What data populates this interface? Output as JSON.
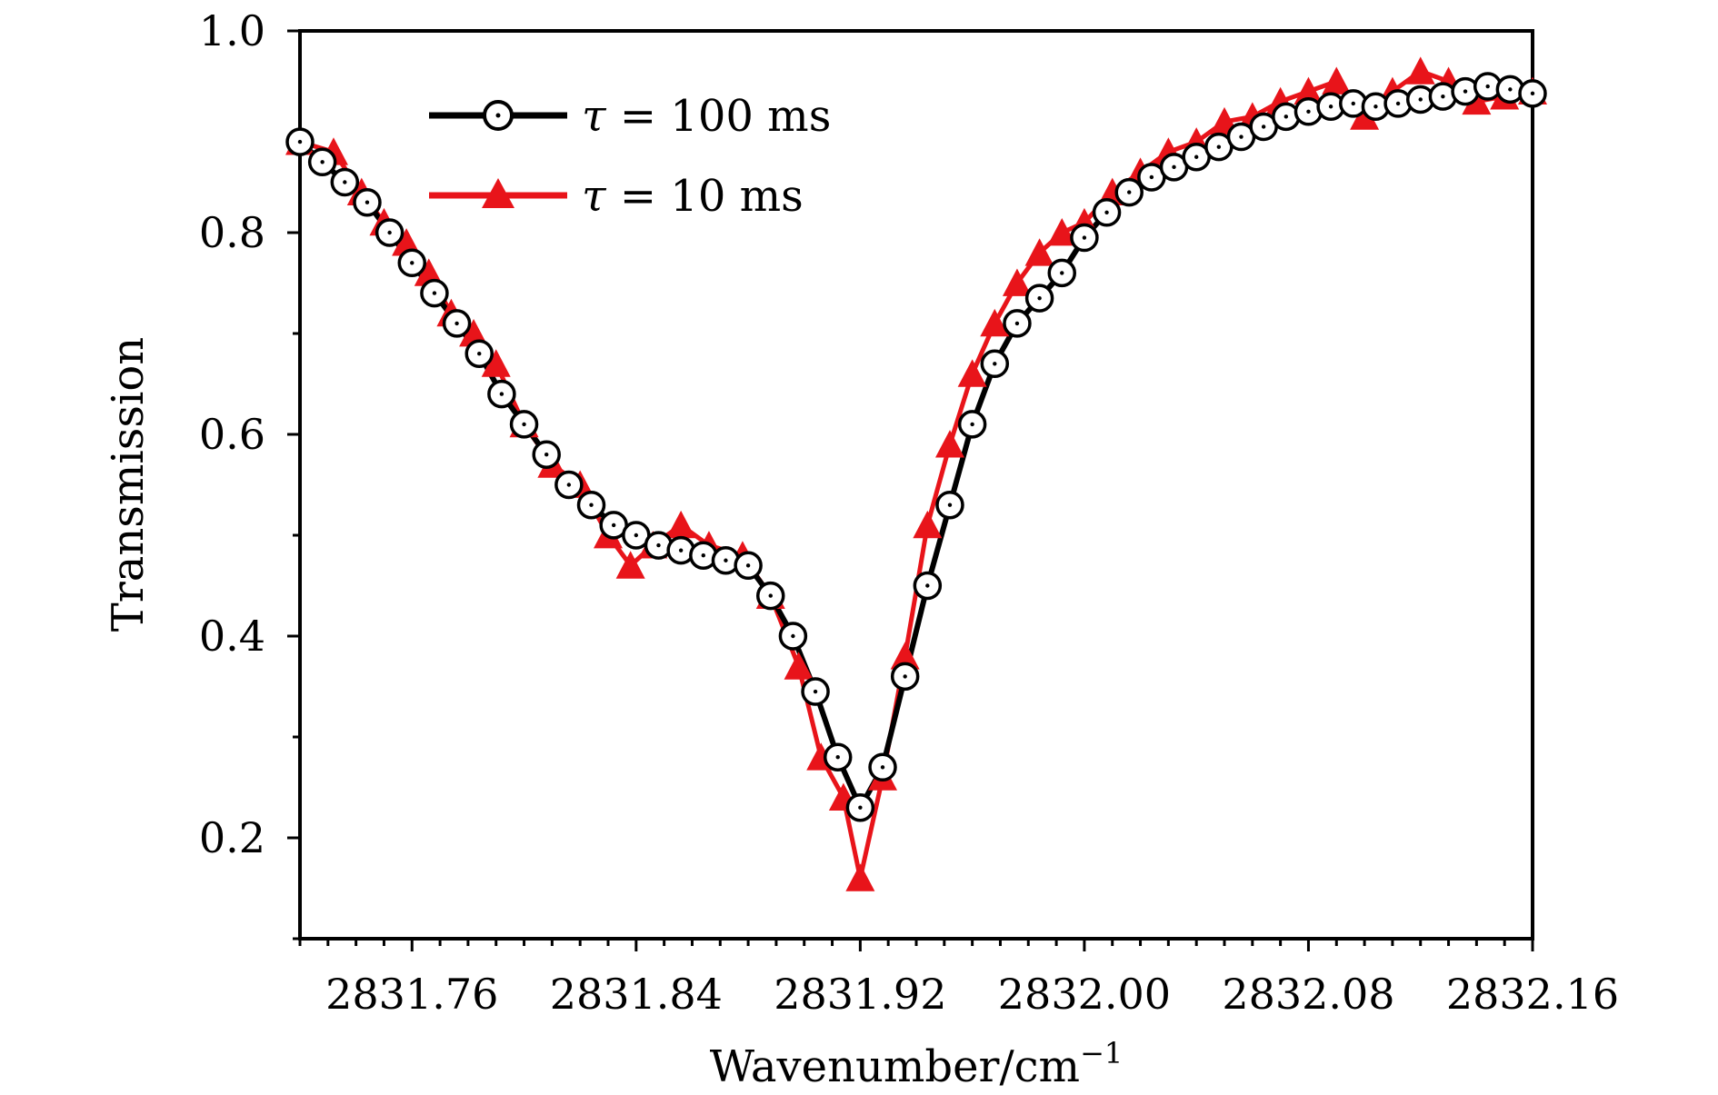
{
  "chart_data": {
    "type": "line",
    "title": "",
    "xlabel": "Wavenumber/cm",
    "xlabel_superscript": "−1",
    "ylabel": "Transmission",
    "xlim": [
      2831.72,
      2832.16
    ],
    "ylim": [
      0.1,
      1.0
    ],
    "x_ticks": [
      2831.76,
      2831.84,
      2831.92,
      2832.0,
      2832.08,
      2832.16
    ],
    "x_tick_labels": [
      "2831.76",
      "2831.84",
      "2831.92",
      "2832.00",
      "2832.08",
      "2832.16"
    ],
    "y_ticks": [
      0.2,
      0.4,
      0.6,
      0.8,
      1.0
    ],
    "y_tick_labels": [
      "0.2",
      "0.4",
      "0.6",
      "0.8",
      "1.0"
    ],
    "grid": false,
    "legend_position": "top-left",
    "series": [
      {
        "name": "τ = 100 ms",
        "legend_symbol": "τ",
        "legend_rest": " = 100 ms",
        "color": "#000000",
        "marker": "circle",
        "x": [
          2831.72,
          2831.728,
          2831.736,
          2831.744,
          2831.752,
          2831.76,
          2831.768,
          2831.776,
          2831.784,
          2831.792,
          2831.8,
          2831.808,
          2831.816,
          2831.824,
          2831.832,
          2831.84,
          2831.848,
          2831.856,
          2831.864,
          2831.872,
          2831.88,
          2831.888,
          2831.896,
          2831.904,
          2831.912,
          2831.92,
          2831.928,
          2831.936,
          2831.944,
          2831.952,
          2831.96,
          2831.968,
          2831.976,
          2831.984,
          2831.992,
          2832.0,
          2832.008,
          2832.016,
          2832.024,
          2832.032,
          2832.04,
          2832.048,
          2832.056,
          2832.064,
          2832.072,
          2832.08,
          2832.088,
          2832.096,
          2832.104,
          2832.112,
          2832.12,
          2832.128,
          2832.136,
          2832.144,
          2832.152,
          2832.16
        ],
        "y": [
          0.89,
          0.87,
          0.85,
          0.83,
          0.8,
          0.77,
          0.74,
          0.71,
          0.68,
          0.64,
          0.61,
          0.58,
          0.55,
          0.53,
          0.51,
          0.5,
          0.49,
          0.485,
          0.48,
          0.475,
          0.47,
          0.44,
          0.4,
          0.345,
          0.28,
          0.23,
          0.27,
          0.36,
          0.45,
          0.53,
          0.61,
          0.67,
          0.71,
          0.735,
          0.76,
          0.795,
          0.82,
          0.84,
          0.855,
          0.865,
          0.875,
          0.885,
          0.895,
          0.905,
          0.915,
          0.92,
          0.925,
          0.928,
          0.925,
          0.928,
          0.932,
          0.935,
          0.94,
          0.945,
          0.942,
          0.938
        ]
      },
      {
        "name": "τ = 10 ms",
        "legend_symbol": "τ",
        "legend_rest": " = 10 ms",
        "color": "#e8141a",
        "marker": "triangle",
        "x": [
          2831.72,
          2831.732,
          2831.742,
          2831.75,
          2831.758,
          2831.766,
          2831.774,
          2831.782,
          2831.79,
          2831.8,
          2831.81,
          2831.82,
          2831.83,
          2831.838,
          2831.846,
          2831.856,
          2831.866,
          2831.878,
          2831.888,
          2831.898,
          2831.906,
          2831.914,
          2831.92,
          2831.928,
          2831.936,
          2831.944,
          2831.952,
          2831.96,
          2831.968,
          2831.976,
          2831.984,
          2831.992,
          2832.0,
          2832.01,
          2832.02,
          2832.03,
          2832.04,
          2832.05,
          2832.06,
          2832.07,
          2832.08,
          2832.09,
          2832.1,
          2832.11,
          2832.12,
          2832.13,
          2832.14,
          2832.15,
          2832.16
        ],
        "y": [
          0.89,
          0.88,
          0.84,
          0.81,
          0.79,
          0.76,
          0.72,
          0.7,
          0.67,
          0.61,
          0.57,
          0.55,
          0.5,
          0.47,
          0.49,
          0.51,
          0.49,
          0.48,
          0.44,
          0.37,
          0.28,
          0.24,
          0.16,
          0.26,
          0.38,
          0.51,
          0.59,
          0.66,
          0.71,
          0.75,
          0.78,
          0.8,
          0.81,
          0.84,
          0.86,
          0.88,
          0.89,
          0.91,
          0.915,
          0.93,
          0.94,
          0.95,
          0.915,
          0.94,
          0.96,
          0.95,
          0.93,
          0.935,
          0.94
        ]
      }
    ]
  }
}
